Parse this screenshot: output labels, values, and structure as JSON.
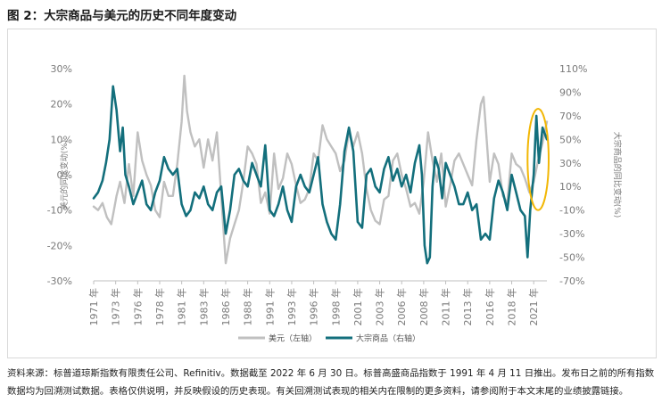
{
  "title": "图 2：大宗商品与美元的历史不同年度变动",
  "source_note": "资料来源：标普道琼斯指数有限责任公司、Refinitiv。数据截至 2022 年 6 月 30 日。标普高盛商品指数于 1991 年 4 月 11 日推出。发布日之前的所有指数数据均为回溯测试数据。表格仅供说明，并反映假设的历史表现。有关回溯测试表现的相关内在限制的更多资料，请参阅附于本文末尾的业绩披露链接。",
  "colors": {
    "usd": "#c0c0c0",
    "commodity": "#136f7c",
    "highlight": "#f2b705",
    "axis_text": "#7a7a7a"
  },
  "chart_data": {
    "type": "line",
    "x_tick_labels": [
      "1971 年",
      "1973 年",
      "1976 年",
      "1978 年",
      "1981 年",
      "1983 年",
      "1986 年",
      "1988 年",
      "1991 年",
      "1993 年",
      "1996 年",
      "1998 年",
      "2001 年",
      "2003 年",
      "2006 年",
      "2008 年",
      "2011 年",
      "2013 年",
      "2016 年",
      "2018 年",
      "2021 年"
    ],
    "x_tick_years": [
      1971,
      1973.5,
      1976,
      1978.5,
      1981,
      1983.5,
      1986,
      1988.5,
      1991,
      1993.5,
      1996,
      1998.5,
      2001,
      2003.5,
      2006,
      2008.5,
      2011,
      2013.5,
      2016,
      2018.5,
      2021
    ],
    "xlim": [
      1971,
      2022.5
    ],
    "left_axis": {
      "label": "美元的同比变动(%)",
      "ylim": [
        -30,
        30
      ],
      "ticks": [
        30,
        20,
        10,
        0,
        -10,
        -20,
        -30
      ],
      "tick_labels": [
        "30%",
        "20%",
        "10%",
        "0%",
        "-10%",
        "-20%",
        "-30%"
      ]
    },
    "right_axis": {
      "label": "大宗商品的同比变动(%)",
      "ylim": [
        -70,
        110
      ],
      "ticks": [
        110,
        90,
        70,
        50,
        30,
        10,
        -10,
        -30,
        -50,
        -70
      ],
      "tick_labels": [
        "110%",
        "90%",
        "70%",
        "50%",
        "30%",
        "10%",
        "-10%",
        "-30%",
        "-50%",
        "-70%"
      ]
    },
    "series": [
      {
        "name": "美元（左轴）",
        "axis": "left",
        "x": [
          1971.0,
          1971.5,
          1972.0,
          1972.5,
          1973.0,
          1973.3,
          1973.6,
          1974.0,
          1974.5,
          1975.0,
          1975.5,
          1976.0,
          1976.5,
          1977.0,
          1977.5,
          1978.0,
          1978.5,
          1979.0,
          1979.5,
          1980.0,
          1980.5,
          1981.0,
          1981.3,
          1981.6,
          1982.0,
          1982.5,
          1983.0,
          1983.5,
          1984.0,
          1984.5,
          1985.0,
          1985.5,
          1986.0,
          1986.5,
          1987.0,
          1987.5,
          1988.0,
          1988.5,
          1989.0,
          1989.5,
          1990.0,
          1990.5,
          1991.0,
          1991.5,
          1992.0,
          1992.5,
          1993.0,
          1993.5,
          1994.0,
          1994.5,
          1995.0,
          1995.5,
          1996.0,
          1996.5,
          1997.0,
          1997.5,
          1998.0,
          1998.5,
          1999.0,
          1999.5,
          2000.0,
          2000.5,
          2001.0,
          2001.5,
          2002.0,
          2002.5,
          2003.0,
          2003.5,
          2004.0,
          2004.5,
          2005.0,
          2005.5,
          2006.0,
          2006.5,
          2007.0,
          2007.5,
          2008.0,
          2008.5,
          2009.0,
          2009.5,
          2010.0,
          2010.5,
          2011.0,
          2011.5,
          2012.0,
          2012.5,
          2013.0,
          2013.5,
          2014.0,
          2014.5,
          2015.0,
          2015.3,
          2015.6,
          2016.0,
          2016.5,
          2017.0,
          2017.5,
          2018.0,
          2018.5,
          2019.0,
          2019.5,
          2020.0,
          2020.5,
          2021.0,
          2021.5,
          2022.0,
          2022.5
        ],
        "y": [
          -9,
          -10,
          -8,
          -12,
          -14,
          -10,
          -6,
          -2,
          -8,
          3,
          -6,
          12,
          4,
          0,
          -3,
          -10,
          -12,
          -2,
          -6,
          -6,
          3,
          15,
          28,
          18,
          12,
          8,
          10,
          2,
          10,
          4,
          12,
          -6,
          -25,
          -18,
          -14,
          -10,
          -2,
          8,
          6,
          3,
          -8,
          -5,
          -11,
          6,
          -4,
          -1,
          6,
          3,
          -3,
          -8,
          -7,
          -4,
          6,
          4,
          14,
          10,
          8,
          6,
          1,
          4,
          12,
          8,
          12,
          6,
          -4,
          -10,
          -13,
          -14,
          -7,
          -6,
          4,
          6,
          0,
          -4,
          -9,
          -8,
          -11,
          -2,
          12,
          4,
          -2,
          6,
          -9,
          -3,
          4,
          6,
          3,
          0,
          -3,
          10,
          20,
          22,
          12,
          -2,
          6,
          3,
          -6,
          -8,
          6,
          3,
          2,
          -1,
          -5,
          -2,
          4,
          9,
          15
        ]
      },
      {
        "name": "大宗商品（右轴）",
        "axis": "right",
        "x": [
          1971.0,
          1971.5,
          1972.0,
          1972.4,
          1972.8,
          1973.2,
          1973.6,
          1974.0,
          1974.3,
          1974.6,
          1975.0,
          1975.5,
          1976.0,
          1976.5,
          1977.0,
          1977.5,
          1978.0,
          1978.5,
          1979.0,
          1979.5,
          1980.0,
          1980.5,
          1981.0,
          1981.5,
          1982.0,
          1982.5,
          1983.0,
          1983.5,
          1984.0,
          1984.5,
          1985.0,
          1985.5,
          1986.0,
          1986.5,
          1987.0,
          1987.5,
          1988.0,
          1988.5,
          1989.0,
          1989.5,
          1990.0,
          1990.5,
          1991.0,
          1991.5,
          1992.0,
          1992.5,
          1993.0,
          1993.5,
          1994.0,
          1994.5,
          1995.0,
          1995.5,
          1996.0,
          1996.5,
          1997.0,
          1997.5,
          1998.0,
          1998.5,
          1999.0,
          1999.5,
          2000.0,
          2000.5,
          2001.0,
          2001.5,
          2002.0,
          2002.5,
          2003.0,
          2003.5,
          2004.0,
          2004.5,
          2005.0,
          2005.5,
          2006.0,
          2006.5,
          2007.0,
          2007.5,
          2008.0,
          2008.3,
          2008.6,
          2008.9,
          2009.2,
          2009.5,
          2009.8,
          2010.2,
          2010.6,
          2011.0,
          2011.5,
          2012.0,
          2012.5,
          2013.0,
          2013.5,
          2014.0,
          2014.5,
          2015.0,
          2015.5,
          2016.0,
          2016.5,
          2017.0,
          2017.5,
          2018.0,
          2018.5,
          2019.0,
          2019.5,
          2020.0,
          2020.3,
          2020.6,
          2021.0,
          2021.3,
          2021.6,
          2022.0,
          2022.5
        ],
        "y": [
          0,
          5,
          15,
          30,
          50,
          95,
          75,
          40,
          60,
          20,
          10,
          -5,
          5,
          15,
          -5,
          -10,
          5,
          15,
          35,
          25,
          20,
          25,
          -5,
          -15,
          -10,
          5,
          0,
          10,
          -5,
          -10,
          5,
          10,
          -30,
          -10,
          20,
          25,
          15,
          10,
          30,
          20,
          10,
          45,
          -10,
          -15,
          -5,
          10,
          -10,
          -20,
          10,
          20,
          10,
          5,
          20,
          35,
          -5,
          -20,
          -30,
          -35,
          -5,
          40,
          60,
          40,
          -20,
          -25,
          20,
          25,
          10,
          5,
          25,
          35,
          15,
          25,
          10,
          20,
          5,
          30,
          45,
          20,
          -40,
          -55,
          -50,
          10,
          35,
          25,
          0,
          30,
          20,
          10,
          -5,
          -5,
          5,
          -10,
          -5,
          -35,
          -30,
          -35,
          0,
          15,
          5,
          -10,
          20,
          5,
          -10,
          -15,
          -50,
          -10,
          20,
          70,
          30,
          60,
          50
        ]
      }
    ],
    "legend": {
      "placement": "bottom"
    },
    "highlight_ellipse": {
      "center_year": 2021.5,
      "center_right_pct": 33,
      "radius_years": 1.2,
      "radius_pct": 43
    },
    "grid": false
  }
}
